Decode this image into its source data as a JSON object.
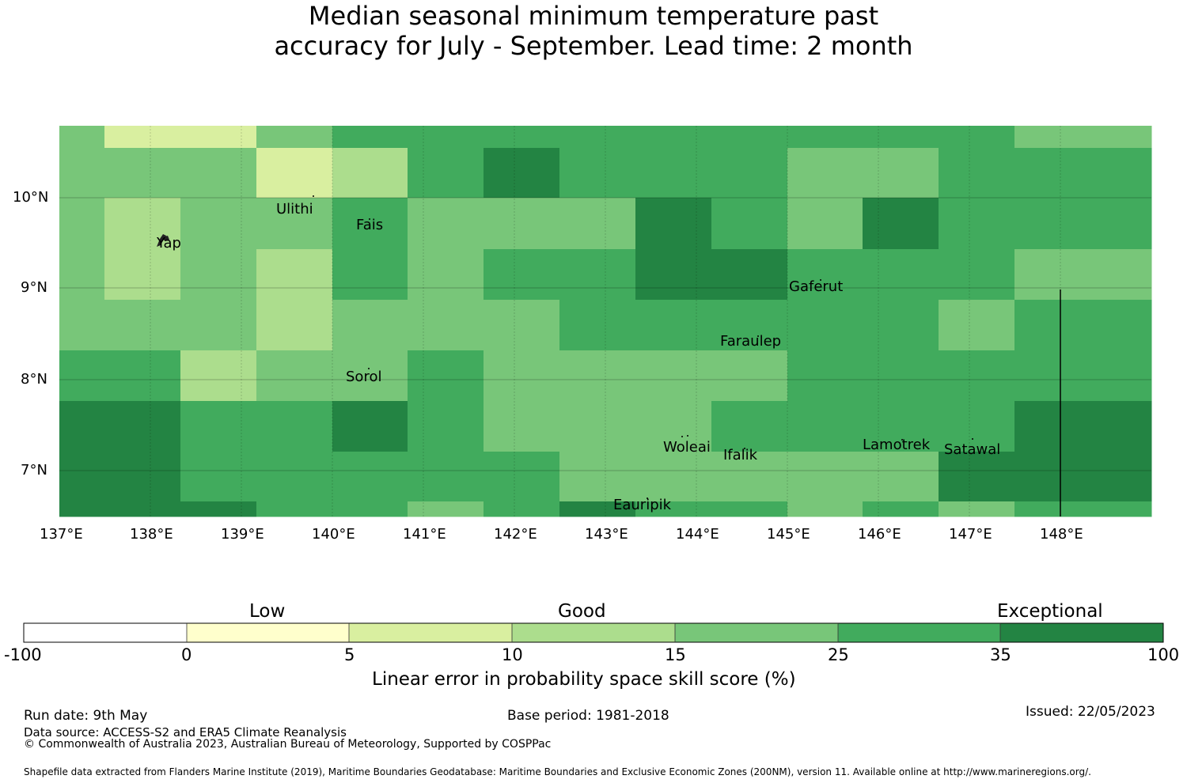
{
  "title": {
    "line1": "Median seasonal minimum temperature past",
    "line2": "accuracy for July - September. Lead time: 2 month"
  },
  "map": {
    "lon_ticks": [
      "137°E",
      "138°E",
      "139°E",
      "140°E",
      "141°E",
      "142°E",
      "143°E",
      "144°E",
      "145°E",
      "146°E",
      "147°E",
      "148°E"
    ],
    "lat_ticks": [
      "10°N",
      "9°N",
      "8°N",
      "7°N"
    ],
    "islands": [
      "Ulithi",
      "Fais",
      "Yap",
      "Gaferut",
      "Faraulep",
      "Sorol",
      "Woleai",
      "Ifalik",
      "Lamotrek",
      "Satawal",
      "Eauripik"
    ],
    "colors": [
      "#d9efa0",
      "#acdd8d",
      "#78c679",
      "#41ab5d",
      "#238443"
    ],
    "grid_rows": [
      [
        2,
        0,
        0,
        2,
        3,
        3,
        3,
        3,
        3,
        3,
        3,
        3,
        3,
        2
      ],
      [
        2,
        2,
        2,
        0,
        1,
        3,
        4,
        3,
        3,
        3,
        2,
        2,
        3,
        3
      ],
      [
        2,
        1,
        2,
        2,
        3,
        2,
        2,
        2,
        4,
        3,
        2,
        4,
        3,
        3
      ],
      [
        2,
        1,
        2,
        1,
        3,
        2,
        3,
        3,
        4,
        4,
        3,
        3,
        3,
        2
      ],
      [
        2,
        2,
        2,
        1,
        2,
        2,
        2,
        3,
        3,
        3,
        3,
        3,
        2,
        3
      ],
      [
        3,
        3,
        1,
        2,
        2,
        3,
        2,
        2,
        2,
        2,
        3,
        3,
        3,
        3
      ],
      [
        4,
        4,
        3,
        3,
        4,
        3,
        2,
        2,
        2,
        3,
        3,
        3,
        3,
        4
      ],
      [
        4,
        4,
        3,
        3,
        3,
        3,
        3,
        2,
        2,
        2,
        2,
        2,
        4,
        4
      ],
      [
        4,
        4,
        4,
        3,
        3,
        2,
        3,
        4,
        3,
        3,
        2,
        3,
        2,
        3
      ]
    ]
  },
  "colorbar": {
    "categories": [
      "Low",
      "Good",
      "Exceptional"
    ],
    "tick_labels": [
      "-100",
      "0",
      "5",
      "10",
      "15",
      "25",
      "35",
      "100"
    ],
    "colors": [
      "#ffffff",
      "#ffffcc",
      "#d9efa0",
      "#acdd8d",
      "#78c679",
      "#41ab5d",
      "#238443"
    ],
    "label": "Linear error in probability space skill score (%)"
  },
  "footer": {
    "run_date": "Run date: 9th May",
    "base_period": "Base period: 1981-2018",
    "issued": "Issued: 22/05/2023",
    "data_source": "Data source: ACCESS-S2 and ERA5 Climate Reanalysis",
    "copyright": "© Commonwealth of Australia 2023, Australian Bureau of Meteorology, Supported by COSPPac",
    "shapefile": "Shapefile data extracted from Flanders Marine Institute (2019), Maritime Boundaries Geodatabase: Maritime Boundaries and Exclusive Economic Zones (200NM), version 11. Available online at http://www.marineregions.org/."
  }
}
